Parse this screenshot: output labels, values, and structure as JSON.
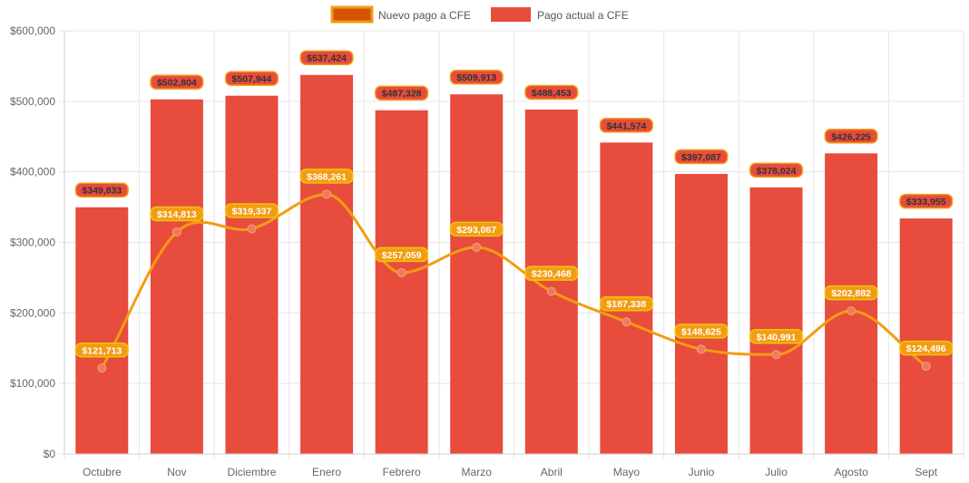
{
  "chart_data": {
    "type": "bar",
    "title": "",
    "xlabel": "",
    "ylabel": "",
    "categories": [
      "Octubre",
      "Nov",
      "Diciembre",
      "Enero",
      "Febrero",
      "Marzo",
      "Abril",
      "Mayo",
      "Junio",
      "Julio",
      "Agosto",
      "Sept"
    ],
    "ylim": [
      0,
      600000
    ],
    "y_ticks": [
      {
        "value": 0,
        "label": "$0"
      },
      {
        "value": 100000,
        "label": "$100,000"
      },
      {
        "value": 200000,
        "label": "$200,000"
      },
      {
        "value": 300000,
        "label": "$300,000"
      },
      {
        "value": 400000,
        "label": "$400,000"
      },
      {
        "value": 500000,
        "label": "$500,000"
      },
      {
        "value": 600000,
        "label": "$600,000"
      }
    ],
    "grid": true,
    "legend_position": "top-center",
    "series": [
      {
        "name": "Nuevo pago a CFE",
        "type": "line",
        "color": "#f39c12",
        "point_color": "#f0795f",
        "values": [
          121713,
          314813,
          319337,
          368261,
          257059,
          293067,
          230468,
          187338,
          148625,
          140991,
          202882,
          124496
        ],
        "labels": [
          "$121,713",
          "$314,813",
          "$319,337",
          "$368,261",
          "$257,059",
          "$293,067",
          "$230,468",
          "$187,338",
          "$148,625",
          "$140,991",
          "$202,882",
          "$124,496"
        ]
      },
      {
        "name": "Pago actual a CFE",
        "type": "bar",
        "color": "#e74c3c",
        "values": [
          349833,
          502804,
          507944,
          537424,
          487328,
          509913,
          488453,
          441574,
          397087,
          378024,
          426225,
          333955
        ],
        "labels": [
          "$349,833",
          "$502,804",
          "$507,944",
          "$537,424",
          "$487,328",
          "$509,913",
          "$488,453",
          "$441,574",
          "$397,087",
          "$378,024",
          "$426,225",
          "$333,955"
        ]
      }
    ]
  }
}
